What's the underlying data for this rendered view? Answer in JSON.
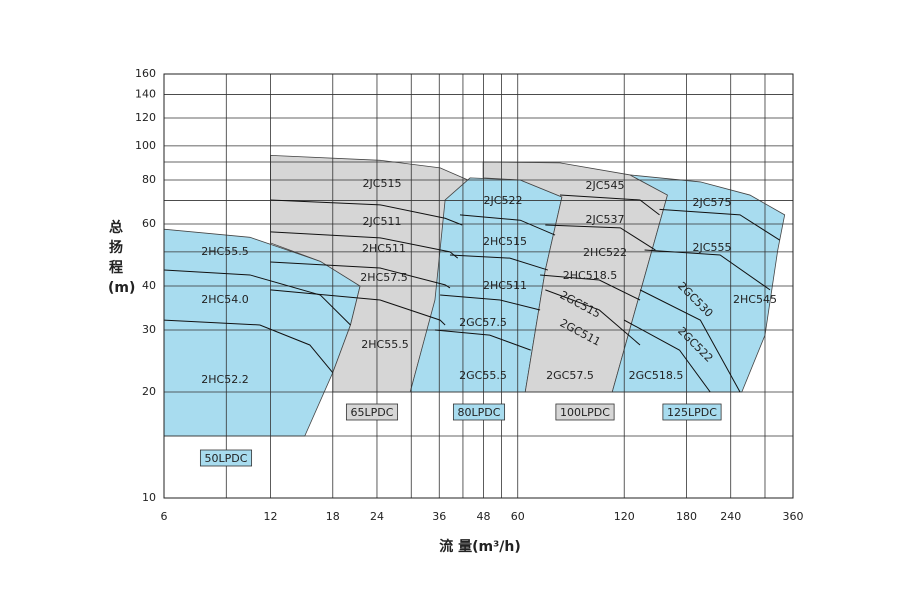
{
  "chart_data": {
    "type": "region",
    "x_label": "流 量(m³/h)",
    "y_label": "总扬程(m)",
    "log_x": true,
    "log_y": true,
    "grid": true,
    "xlim": [
      6,
      360
    ],
    "xticks": [
      6,
      12,
      18,
      24,
      36,
      48,
      60,
      120,
      180,
      240,
      360
    ],
    "x_grid": [
      9,
      30,
      42,
      54,
      300
    ],
    "ylim": [
      10,
      160
    ],
    "yticks": [
      10,
      20,
      30,
      40,
      60,
      80,
      100,
      120,
      140,
      160
    ],
    "y_grid": [
      15,
      50,
      70,
      90
    ],
    "regions": [
      {
        "name": "50LPDC",
        "color": "#a8dcef",
        "x": [
          6,
          6,
          10.5,
          16.6,
          21.5,
          20.2,
          18,
          15
        ],
        "y": [
          15,
          58,
          55,
          47,
          40,
          31,
          22.7,
          15
        ]
      },
      {
        "name": "65LPDC",
        "color": "#d6d6d6",
        "x": [
          12,
          24.5,
          36.2,
          43.4,
          29.8,
          18,
          18,
          20.2,
          21.5,
          16.6,
          12
        ],
        "y": [
          94,
          91,
          86.6,
          80,
          20,
          20,
          22.7,
          31,
          40,
          47,
          53
        ]
      },
      {
        "name": "80LPDC",
        "color": "#a8dcef",
        "x": [
          37.4,
          44,
          61,
          80,
          71.8,
          63,
          29.8,
          35
        ],
        "y": [
          70.2,
          81.1,
          80,
          71.6,
          44.4,
          20,
          20,
          36.5
        ]
      },
      {
        "name": "100LPDC",
        "color": "#d6d6d6",
        "x": [
          47.9,
          79,
          124.6,
          159,
          111,
          63,
          71.8,
          80,
          61,
          47.9
        ],
        "y": [
          90,
          89.5,
          82.7,
          72.5,
          20,
          20,
          44.4,
          71.6,
          80,
          81.1
        ]
      },
      {
        "name": "125LPDC",
        "color": "#a8dcef",
        "x": [
          124.6,
          197,
          272,
          341,
          326,
          300,
          258,
          111,
          159
        ],
        "y": [
          82.7,
          79,
          72.5,
          63.7,
          50.6,
          29,
          20,
          20,
          72.5
        ]
      }
    ],
    "curves": [
      {
        "x": [
          6,
          10.5,
          16.6,
          20.2
        ],
        "y": [
          44.4,
          43,
          37.7,
          31
        ]
      },
      {
        "x": [
          6,
          11.2,
          15.5,
          18
        ],
        "y": [
          32,
          31,
          27.2,
          22.7
        ]
      },
      {
        "x": [
          12,
          24.5,
          37.4,
          41.8
        ],
        "y": [
          70.2,
          68,
          62.3,
          59.6
        ]
      },
      {
        "x": [
          12,
          24.5,
          38.6,
          40.6
        ],
        "y": [
          57,
          54.8,
          50,
          48
        ]
      },
      {
        "x": [
          12,
          24.5,
          37.4,
          38.6
        ],
        "y": [
          46.8,
          45,
          40.3,
          39.5
        ]
      },
      {
        "x": [
          12,
          24.5,
          36.2,
          37.4
        ],
        "y": [
          39,
          36.5,
          32,
          31
        ]
      },
      {
        "x": [
          41.2,
          61,
          76.5
        ],
        "y": [
          63.7,
          61.5,
          55.8
        ]
      },
      {
        "x": [
          38.6,
          57,
          73
        ],
        "y": [
          49,
          48,
          44.4
        ]
      },
      {
        "x": [
          36.2,
          53.5,
          69.4
        ],
        "y": [
          37.7,
          36.5,
          34.2
        ]
      },
      {
        "x": [
          35,
          50,
          65.3
        ],
        "y": [
          30,
          29,
          26.3
        ]
      },
      {
        "x": [
          79,
          133,
          151
        ],
        "y": [
          72.5,
          70.2,
          63.7
        ]
      },
      {
        "x": [
          71.8,
          117,
          147
        ],
        "y": [
          59.6,
          58.5,
          50.6
        ]
      },
      {
        "x": [
          69.4,
          102,
          133
        ],
        "y": [
          43,
          41.6,
          36.5
        ]
      },
      {
        "x": [
          71.8,
          102,
          133
        ],
        "y": [
          39,
          34.2,
          27.2
        ]
      },
      {
        "x": [
          151,
          255,
          330
        ],
        "y": [
          66,
          63.7,
          54
        ]
      },
      {
        "x": [
          137,
          224,
          310
        ],
        "y": [
          50.6,
          49,
          39
        ]
      },
      {
        "x": [
          133,
          197,
          255
        ],
        "y": [
          39,
          32,
          20
        ]
      },
      {
        "x": [
          120,
          172,
          210
        ],
        "y": [
          32,
          26.3,
          20
        ]
      }
    ],
    "labels": [
      "2HC55.5",
      "2HC54.0",
      "2HC52.2",
      "2JC515",
      "2JC511",
      "2HC511",
      "2HC57.5",
      "2HC55.5",
      "2JC522",
      "2HC515",
      "2HC511",
      "2GC57.5",
      "2GC55.5",
      "2JC545",
      "2JC537",
      "2HC522",
      "2HC518.5",
      "2GC515",
      "2GC511",
      "2GC57.5",
      "2JC575",
      "2JC555",
      "2GC530",
      "2GC522",
      "2HC545",
      "2GC518.5"
    ]
  }
}
